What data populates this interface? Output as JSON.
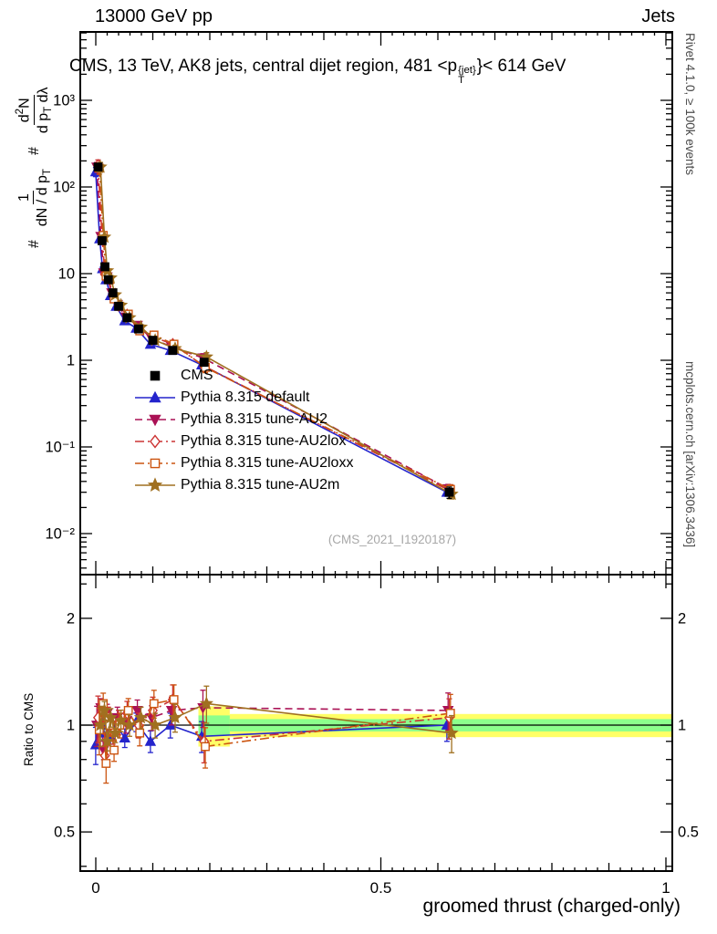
{
  "header": {
    "left": "13000 GeV pp",
    "right": "Jets"
  },
  "title": {
    "pre": "CMS, 13 TeV, AK8 jets, central dijet region, 481 <p",
    "sup": "{jet}",
    "sub": "T",
    "post": "}< 614 GeV"
  },
  "ylabel": {
    "hash1": "#",
    "frac1_num": "1",
    "frac1_den": "dN / d p",
    "sub_T": "T",
    "hash2": "#",
    "frac2_num_pre": "d",
    "frac2_num_sup": "2",
    "frac2_num_post": "N",
    "frac2_den_pre": "d p",
    "frac2_den_post": " dλ"
  },
  "labels": {
    "watermark": "(CMS_2021_I1920187)",
    "rivet": "Rivet 4.1.0, ≥ 100k events",
    "mcplots": "mcplots.cern.ch [arXiv:1306.3436]",
    "ratio_ylabel": "Ratio to CMS",
    "xlabel": "groomed thrust (charged-only)"
  },
  "chart_data": {
    "type": "line",
    "title": "CMS, 13 TeV, AK8 jets, central dijet region, 481 < pT{jet} < 614 GeV",
    "xlabel": "groomed thrust (charged-only)",
    "ylabel": "# 1/(dN/dpT) d²N/(dpT dλ)",
    "ratio_ylabel": "Ratio to CMS",
    "x_range": [
      0,
      1
    ],
    "y_scale": "log",
    "y_range": [
      0.0035,
      6000
    ],
    "ratio_range": [
      0.39,
      2.65
    ],
    "grid": false,
    "legend_position": "center-left",
    "axes": {
      "x_ticks": [
        {
          "v": 0,
          "label": "0"
        },
        {
          "v": 0.5,
          "label": "0.5"
        },
        {
          "v": 1,
          "label": "1"
        }
      ],
      "y_ticks_main": [
        {
          "v": 1000,
          "label": "10³"
        },
        {
          "v": 100,
          "label": "10²"
        },
        {
          "v": 10,
          "label": "10"
        },
        {
          "v": 1,
          "label": "1"
        },
        {
          "v": 0.1,
          "label": "10⁻¹"
        },
        {
          "v": 0.01,
          "label": "10⁻²"
        }
      ],
      "y_ticks_ratio": [
        {
          "v": 2,
          "label": "2"
        },
        {
          "v": 1,
          "label": "1"
        },
        {
          "v": 0.5,
          "label": "0.5"
        }
      ],
      "y_minor_ratio": [
        0.4,
        0.6,
        0.7,
        0.8,
        0.9,
        2.5
      ]
    },
    "x": [
      0.004,
      0.011,
      0.016,
      0.022,
      0.03,
      0.04,
      0.055,
      0.075,
      0.1,
      0.135,
      0.19,
      0.62
    ],
    "cms": {
      "id": "cms",
      "name": "CMS",
      "marker": "square",
      "color": "#000000",
      "values": [
        170,
        24,
        12,
        8.5,
        6.0,
        4.2,
        3.1,
        2.3,
        1.7,
        1.3,
        0.95,
        0.03
      ],
      "rel_err": [
        0.05,
        0.04,
        0.04,
        0.04,
        0.04,
        0.05,
        0.05,
        0.05,
        0.06,
        0.07,
        0.1,
        0.15
      ]
    },
    "series": [
      {
        "id": "default",
        "name": "Pythia 8.315 default",
        "marker": "triangle-up",
        "fill": true,
        "color": "#2424cc",
        "line": "solid",
        "ratio": [
          0.88,
          1.05,
          0.95,
          1.0,
          0.93,
          1.0,
          0.92,
          1.02,
          0.9,
          1.0,
          0.93,
          1.0
        ],
        "ratio_err": [
          0.12,
          0.05,
          0.05,
          0.05,
          0.05,
          0.06,
          0.06,
          0.06,
          0.07,
          0.08,
          0.1,
          0.1
        ]
      },
      {
        "id": "au2",
        "name": "Pythia 8.315 tune-AU2",
        "marker": "triangle-down",
        "fill": true,
        "color": "#aa1155",
        "line": "dash",
        "ratio": [
          1.0,
          1.12,
          0.85,
          1.08,
          1.0,
          1.05,
          1.02,
          1.1,
          1.05,
          1.1,
          1.12,
          1.1
        ],
        "ratio_err": [
          0.13,
          0.06,
          0.06,
          0.06,
          0.06,
          0.07,
          0.07,
          0.07,
          0.08,
          0.09,
          0.12,
          0.12
        ]
      },
      {
        "id": "au2lox",
        "name": "Pythia 8.315 tune-AU2lox",
        "marker": "diamond",
        "fill": false,
        "color": "#cc3333",
        "line": "dashdot",
        "ratio": [
          1.05,
          1.1,
          0.82,
          1.05,
          0.95,
          1.02,
          1.08,
          1.0,
          1.1,
          1.18,
          0.9,
          1.05
        ],
        "ratio_err": [
          0.15,
          0.07,
          0.07,
          0.07,
          0.07,
          0.08,
          0.08,
          0.08,
          0.09,
          0.1,
          0.13,
          0.13
        ]
      },
      {
        "id": "au2loxx",
        "name": "Pythia 8.315 tune-AU2loxx",
        "marker": "square",
        "fill": false,
        "color": "#cc5511",
        "line": "dashdot",
        "ratio": [
          0.97,
          1.15,
          0.78,
          1.0,
          0.85,
          1.0,
          1.1,
          0.95,
          1.15,
          1.18,
          0.87,
          1.08
        ],
        "ratio_err": [
          0.15,
          0.07,
          0.12,
          0.07,
          0.07,
          0.08,
          0.08,
          0.08,
          0.09,
          0.1,
          0.13,
          0.13
        ]
      },
      {
        "id": "au2m",
        "name": "Pythia 8.315 tune-AU2m",
        "marker": "star",
        "fill": true,
        "color": "#a07020",
        "line": "solid",
        "ratio": [
          1.0,
          1.1,
          0.9,
          1.05,
          0.95,
          1.03,
          1.0,
          1.05,
          1.0,
          1.05,
          1.15,
          0.95
        ],
        "ratio_err": [
          0.13,
          0.06,
          0.06,
          0.06,
          0.06,
          0.07,
          0.07,
          0.07,
          0.08,
          0.09,
          0.12,
          0.12
        ]
      }
    ],
    "ratio_band": {
      "yellow_color": "#ffff66",
      "green_color": "#8cff8c",
      "segments": [
        {
          "x0": 0.18,
          "x1": 0.235,
          "yellow": 0.13,
          "green": 0.065
        },
        {
          "x0": 0.235,
          "x1": 1.0,
          "yellow": 0.075,
          "green": 0.04
        }
      ]
    }
  }
}
